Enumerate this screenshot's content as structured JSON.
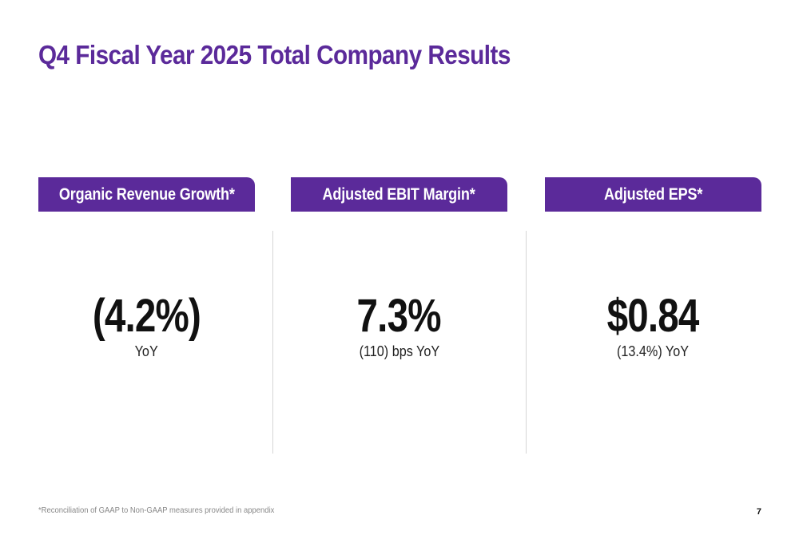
{
  "slide": {
    "title": "Q4 Fiscal Year 2025 Total Company Results",
    "footnote": "*Reconciliation of GAAP to Non-GAAP measures provided in appendix",
    "page_number": "7"
  },
  "metrics": [
    {
      "header": "Organic Revenue Growth*",
      "value": "(4.2%)",
      "sub": "YoY"
    },
    {
      "header": "Adjusted EBIT Margin*",
      "value": "7.3%",
      "sub": "(110) bps YoY"
    },
    {
      "header": "Adjusted EPS*",
      "value": "$0.84",
      "sub": "(13.4%) YoY"
    }
  ],
  "colors": {
    "accent": "#5b2a9a",
    "header_text": "#ffffff",
    "value_text": "#111111",
    "divider": "#d6d6d6"
  }
}
